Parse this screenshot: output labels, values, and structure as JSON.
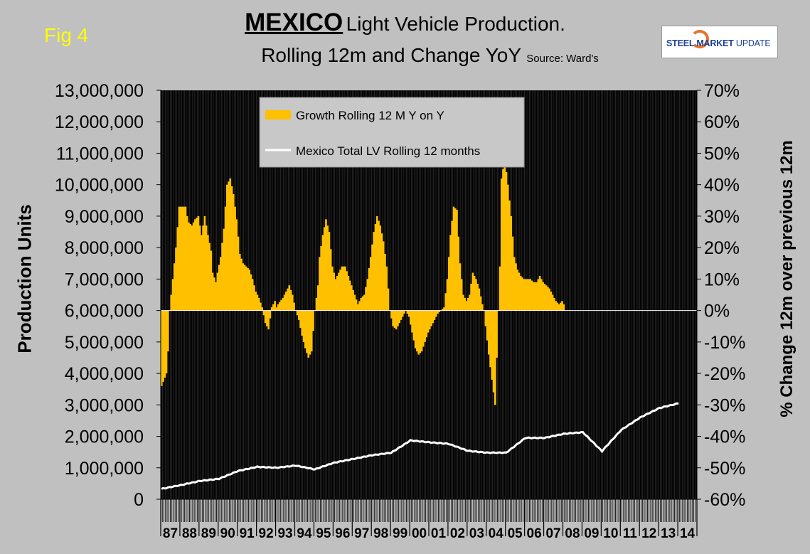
{
  "header": {
    "fig_label": "Fig 4",
    "title_main": "MEXICO",
    "title_rest": "Light Vehicle Production.",
    "subtitle": "Rolling 12m and Change YoY",
    "source": "Source: Ward's"
  },
  "logo": {
    "strong": "STEEL MARKET",
    "light": "UPDATE"
  },
  "colors": {
    "background": "#c0c0c0",
    "plot": "#000000",
    "growth": "#ffc000",
    "total": "#ffffff",
    "fig_label": "#ffff00"
  },
  "chart_data": {
    "type": "bar",
    "ylabel": "Production Units",
    "y2label": "% Change 12m over previous 12m",
    "ylim": [
      0,
      13000000
    ],
    "y2lim": [
      -60,
      70
    ],
    "y_ticks": [
      "0",
      "1,000,000",
      "2,000,000",
      "3,000,000",
      "4,000,000",
      "5,000,000",
      "6,000,000",
      "7,000,000",
      "8,000,000",
      "9,000,000",
      "10,000,000",
      "11,000,000",
      "12,000,000",
      "13,000,000"
    ],
    "y2_ticks": [
      "-60%",
      "-50%",
      "-40%",
      "-30%",
      "-20%",
      "-10%",
      "0%",
      "10%",
      "20%",
      "30%",
      "40%",
      "50%",
      "60%",
      "70%"
    ],
    "x_ticks": [
      "87",
      "88",
      "89",
      "90",
      "91",
      "92",
      "93",
      "94",
      "95",
      "96",
      "97",
      "98",
      "99",
      "00",
      "01",
      "02",
      "03",
      "04",
      "05",
      "06",
      "07",
      "08",
      "09",
      "10",
      "11",
      "12",
      "13",
      "14"
    ],
    "months_per_year": 12,
    "grid": "vertical-monthly",
    "legend_position": "top-center",
    "series": [
      {
        "name": "Growth Rolling 12 M Y on Y",
        "kind": "bar",
        "axis": "right",
        "unit": "%",
        "points": [
          [
            0,
            -24
          ],
          [
            3,
            -20
          ],
          [
            4,
            -13
          ],
          [
            5,
            0
          ],
          [
            6,
            5
          ],
          [
            9,
            20
          ],
          [
            11,
            33
          ],
          [
            13,
            33
          ],
          [
            15,
            33
          ],
          [
            16,
            30
          ],
          [
            17,
            28
          ],
          [
            19,
            27
          ],
          [
            21,
            29
          ],
          [
            23,
            30
          ],
          [
            25,
            24
          ],
          [
            27,
            30
          ],
          [
            29,
            24
          ],
          [
            31,
            19
          ],
          [
            32,
            12
          ],
          [
            34,
            9
          ],
          [
            35,
            12
          ],
          [
            37,
            17
          ],
          [
            39,
            26
          ],
          [
            41,
            40
          ],
          [
            43,
            42
          ],
          [
            45,
            37
          ],
          [
            47,
            29
          ],
          [
            49,
            18
          ],
          [
            51,
            15
          ],
          [
            53,
            14
          ],
          [
            55,
            13
          ],
          [
            57,
            10
          ],
          [
            59,
            6
          ],
          [
            61,
            4
          ],
          [
            63,
            1
          ],
          [
            65,
            -4
          ],
          [
            67,
            -6
          ],
          [
            69,
            1
          ],
          [
            71,
            3
          ],
          [
            72,
            1
          ],
          [
            73,
            2
          ],
          [
            76,
            4
          ],
          [
            78,
            6
          ],
          [
            80,
            8
          ],
          [
            82,
            5
          ],
          [
            84,
            0
          ],
          [
            86,
            -3
          ],
          [
            88,
            -8
          ],
          [
            90,
            -12
          ],
          [
            92,
            -15
          ],
          [
            94,
            -13
          ],
          [
            96,
            0
          ],
          [
            98,
            8
          ],
          [
            99,
            17
          ],
          [
            101,
            24
          ],
          [
            103,
            29
          ],
          [
            105,
            25
          ],
          [
            107,
            14
          ],
          [
            109,
            10
          ],
          [
            111,
            12
          ],
          [
            113,
            14
          ],
          [
            115,
            14
          ],
          [
            117,
            11
          ],
          [
            119,
            8
          ],
          [
            121,
            5
          ],
          [
            123,
            2
          ],
          [
            125,
            4
          ],
          [
            127,
            5
          ],
          [
            129,
            10
          ],
          [
            131,
            17
          ],
          [
            133,
            25
          ],
          [
            135,
            30
          ],
          [
            137,
            27
          ],
          [
            139,
            22
          ],
          [
            141,
            14
          ],
          [
            143,
            0
          ],
          [
            145,
            -5
          ],
          [
            147,
            -6
          ],
          [
            149,
            -4
          ],
          [
            151,
            -2
          ],
          [
            153,
            0
          ],
          [
            155,
            -2
          ],
          [
            157,
            -7
          ],
          [
            159,
            -12
          ],
          [
            161,
            -14
          ],
          [
            163,
            -13
          ],
          [
            165,
            -10
          ],
          [
            167,
            -7
          ],
          [
            169,
            -5
          ],
          [
            171,
            -3
          ],
          [
            173,
            -1
          ],
          [
            175,
            0
          ],
          [
            177,
            1
          ],
          [
            179,
            10
          ],
          [
            181,
            24
          ],
          [
            183,
            33
          ],
          [
            185,
            32
          ],
          [
            187,
            15
          ],
          [
            189,
            5
          ],
          [
            191,
            3
          ],
          [
            193,
            5
          ],
          [
            195,
            12
          ],
          [
            197,
            10
          ],
          [
            199,
            7
          ],
          [
            201,
            2
          ],
          [
            202,
            0
          ],
          [
            203,
            -5
          ],
          [
            205,
            -14
          ],
          [
            207,
            -22
          ],
          [
            209,
            -30
          ],
          [
            211,
            0
          ],
          [
            212,
            14
          ],
          [
            213,
            42
          ],
          [
            215,
            48
          ],
          [
            217,
            40
          ],
          [
            219,
            30
          ],
          [
            221,
            17
          ],
          [
            223,
            13
          ],
          [
            225,
            11
          ],
          [
            227,
            10
          ],
          [
            229,
            10
          ],
          [
            231,
            10
          ],
          [
            233,
            9
          ],
          [
            235,
            9
          ],
          [
            237,
            11
          ],
          [
            239,
            9
          ],
          [
            241,
            8
          ],
          [
            243,
            7
          ],
          [
            245,
            5
          ],
          [
            247,
            3
          ],
          [
            249,
            2
          ],
          [
            251,
            3
          ],
          [
            252,
            2
          ]
        ]
      },
      {
        "name": "Mexico Total LV Rolling 12 months",
        "kind": "line",
        "axis": "left",
        "unit": "units",
        "points": [
          [
            0,
            330000
          ],
          [
            12,
            450000
          ],
          [
            24,
            580000
          ],
          [
            36,
            650000
          ],
          [
            48,
            900000
          ],
          [
            60,
            1030000
          ],
          [
            72,
            1000000
          ],
          [
            84,
            1070000
          ],
          [
            96,
            950000
          ],
          [
            108,
            1160000
          ],
          [
            120,
            1280000
          ],
          [
            132,
            1400000
          ],
          [
            144,
            1480000
          ],
          [
            156,
            1870000
          ],
          [
            168,
            1810000
          ],
          [
            180,
            1760000
          ],
          [
            192,
            1540000
          ],
          [
            204,
            1480000
          ],
          [
            216,
            1480000
          ],
          [
            228,
            1950000
          ],
          [
            240,
            1950000
          ],
          [
            252,
            2080000
          ],
          [
            264,
            2130000
          ],
          [
            276,
            1530000
          ],
          [
            288,
            2200000
          ],
          [
            300,
            2600000
          ],
          [
            312,
            2900000
          ],
          [
            324,
            3050000
          ]
        ]
      }
    ]
  }
}
